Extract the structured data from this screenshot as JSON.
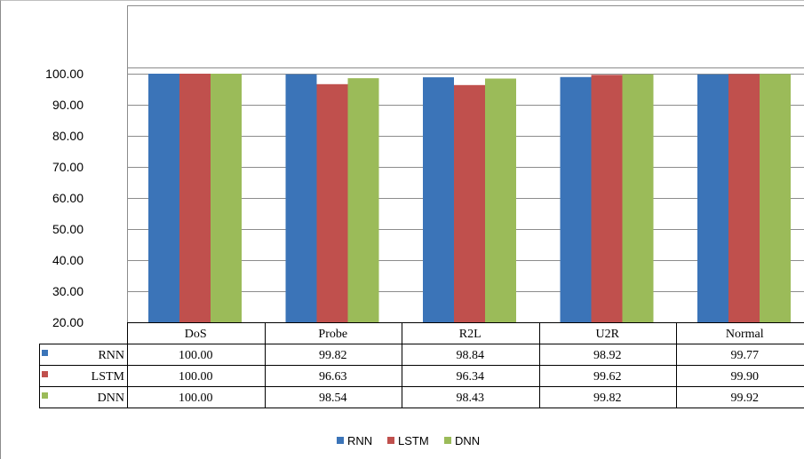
{
  "chart_data": {
    "type": "bar",
    "categories": [
      "DoS",
      "Probe",
      "R2L",
      "U2R",
      "Normal"
    ],
    "series": [
      {
        "name": "RNN",
        "values": [
          100.0,
          99.82,
          98.84,
          98.92,
          99.77
        ],
        "display": [
          "100.00",
          "99.82",
          "98.84",
          "98.92",
          "99.77"
        ],
        "color": "#3b74b8"
      },
      {
        "name": "LSTM",
        "values": [
          100.0,
          96.63,
          96.34,
          99.62,
          99.9
        ],
        "display": [
          "100.00",
          "96.63",
          "96.34",
          "99.62",
          "99.90"
        ],
        "color": "#c0504d"
      },
      {
        "name": "DNN",
        "values": [
          100.0,
          98.54,
          98.43,
          99.82,
          99.92
        ],
        "display": [
          "100.00",
          "98.54",
          "98.43",
          "99.82",
          "99.92"
        ],
        "color": "#9bbb59"
      }
    ],
    "yticks": [
      "20.00",
      "30.00",
      "40.00",
      "50.00",
      "60.00",
      "70.00",
      "80.00",
      "90.00",
      "100.00"
    ],
    "ylim": [
      20,
      100
    ],
    "grid": true,
    "data_table": true,
    "legend_position": "bottom"
  }
}
